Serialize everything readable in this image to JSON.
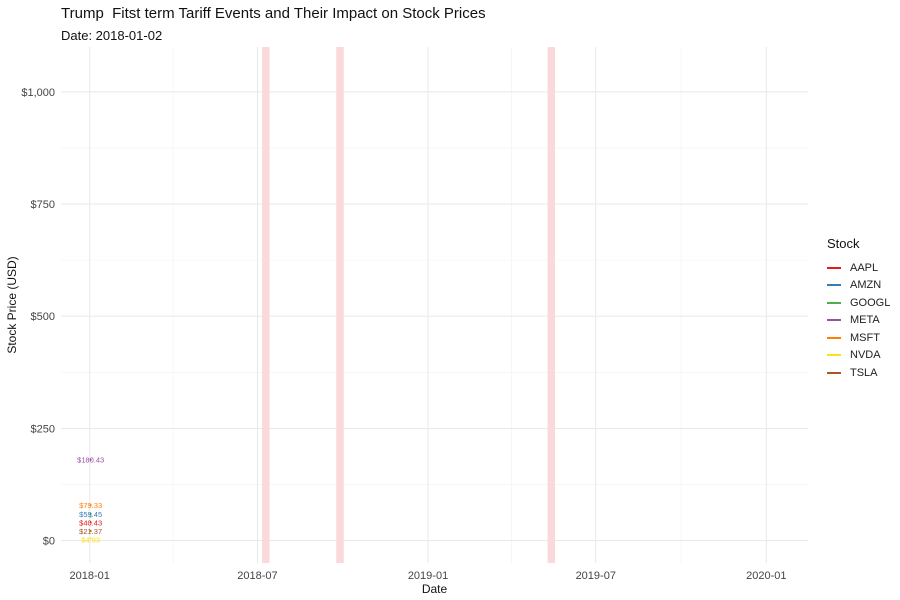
{
  "chart_data": {
    "type": "line",
    "title": "Trump  Fitst term Tariff Events and Their Impact on Stock Prices",
    "subtitle": "Date: 2018-01-02",
    "xlabel": "Date",
    "ylabel": "Stock Price (USD)",
    "xlim": [
      "2017-12-01",
      "2020-02-15"
    ],
    "ylim": [
      -50,
      1100
    ],
    "x_ticks": [
      {
        "date": "2018-01-01",
        "label": "2018-01"
      },
      {
        "date": "2018-07-01",
        "label": "2018-07"
      },
      {
        "date": "2019-01-01",
        "label": "2019-01"
      },
      {
        "date": "2019-07-01",
        "label": "2019-07"
      },
      {
        "date": "2020-01-01",
        "label": "2020-01"
      }
    ],
    "x_minor_ticks": [
      "2018-04-01",
      "2018-10-01",
      "2019-04-01",
      "2019-10-01"
    ],
    "y_ticks": [
      {
        "value": 0,
        "label": "$0"
      },
      {
        "value": 250,
        "label": "$250"
      },
      {
        "value": 500,
        "label": "$500"
      },
      {
        "value": 750,
        "label": "$750"
      },
      {
        "value": 1000,
        "label": "$1,000"
      }
    ],
    "y_minor_ticks": [
      125,
      375,
      625,
      875
    ],
    "grid": true,
    "tariff_events": [
      {
        "start": "2018-07-06",
        "end": "2018-07-14"
      },
      {
        "start": "2018-09-24",
        "end": "2018-10-02"
      },
      {
        "start": "2019-05-10",
        "end": "2019-05-18"
      }
    ],
    "tariff_event_color": "#fbd8da",
    "series": [
      {
        "name": "AAPL",
        "color": "#e41a1c",
        "points": [
          {
            "x": "2018-01-02",
            "y": 40.43
          }
        ],
        "label": "$40.43"
      },
      {
        "name": "AMZN",
        "color": "#377eb8",
        "points": [
          {
            "x": "2018-01-02",
            "y": 59.45
          }
        ],
        "label": "$59.45"
      },
      {
        "name": "GOOGL",
        "color": "#4daf4a",
        "points": [
          {
            "x": "2018-01-02",
            "y": 53.66
          }
        ],
        "label": ""
      },
      {
        "name": "META",
        "color": "#984ea3",
        "points": [
          {
            "x": "2018-01-02",
            "y": 180.43
          }
        ],
        "label": "$180.43"
      },
      {
        "name": "MSFT",
        "color": "#ff7f00",
        "points": [
          {
            "x": "2018-01-02",
            "y": 79.33
          }
        ],
        "label": "$79.33"
      },
      {
        "name": "NVDA",
        "color": "#ffe119",
        "points": [
          {
            "x": "2018-01-02",
            "y": 4.93
          }
        ],
        "label": "$4.93"
      },
      {
        "name": "TSLA",
        "color": "#a65628",
        "points": [
          {
            "x": "2018-01-02",
            "y": 21.37
          }
        ],
        "label": "$21.37"
      }
    ],
    "legend": {
      "title": "Stock",
      "position": "right"
    }
  }
}
